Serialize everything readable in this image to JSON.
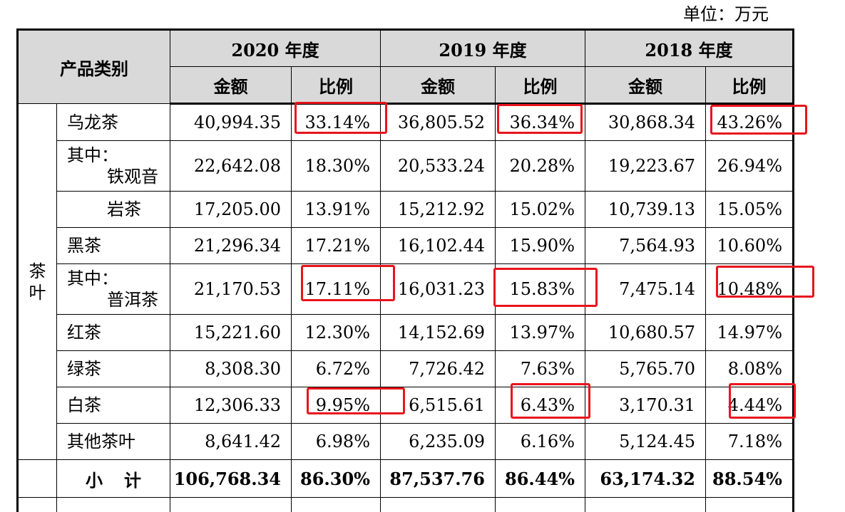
{
  "unit_label": "单位：万元",
  "header": {
    "category": "产品类别",
    "years": [
      "2020 年度",
      "2019 年度",
      "2018 年度"
    ],
    "amount": "金额",
    "ratio": "比例"
  },
  "group_label": [
    "茶",
    "叶"
  ],
  "rows": [
    {
      "label": "乌龙茶",
      "sub": "",
      "v": [
        "40,994.35",
        "33.14%",
        "36,805.52",
        "36.34%",
        "30,868.34",
        "43.26%"
      ]
    },
    {
      "label": "其中：",
      "sub": "铁观音",
      "v": [
        "22,642.08",
        "18.30%",
        "20,533.24",
        "20.28%",
        "19,223.67",
        "26.94%"
      ]
    },
    {
      "label": "岩茶",
      "sub": "",
      "v": [
        "17,205.00",
        "13.91%",
        "15,212.92",
        "15.02%",
        "10,739.13",
        "15.05%"
      ]
    },
    {
      "label": "黑茶",
      "sub": "",
      "v": [
        "21,296.34",
        "17.21%",
        "16,102.44",
        "15.90%",
        "7,564.93",
        "10.60%"
      ]
    },
    {
      "label": "其中：",
      "sub": "普洱茶",
      "v": [
        "21,170.53",
        "17.11%",
        "16,031.23",
        "15.83%",
        "7,475.14",
        "10.48%"
      ]
    },
    {
      "label": "红茶",
      "sub": "",
      "v": [
        "15,221.60",
        "12.30%",
        "14,152.69",
        "13.97%",
        "10,680.57",
        "14.97%"
      ]
    },
    {
      "label": "绿茶",
      "sub": "",
      "v": [
        "8,308.30",
        "6.72%",
        "7,726.42",
        "7.63%",
        "5,765.70",
        "8.08%"
      ]
    },
    {
      "label": "白茶",
      "sub": "",
      "v": [
        "12,306.33",
        "9.95%",
        "6,515.61",
        "6.43%",
        "3,170.31",
        "4.44%"
      ]
    },
    {
      "label": "其他茶叶",
      "sub": "",
      "v": [
        "8,641.42",
        "6.98%",
        "6,235.09",
        "6.16%",
        "5,124.45",
        "7.18%"
      ]
    }
  ],
  "total": {
    "label": "小计",
    "v": [
      "106,768.34",
      "86.30%",
      "87,537.76",
      "86.44%",
      "63,174.32",
      "88.54%"
    ]
  },
  "highlight_color": "#e8141c"
}
